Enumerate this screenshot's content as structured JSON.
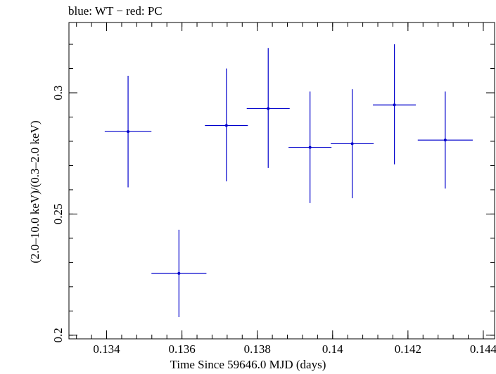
{
  "chart_data": {
    "type": "scatter",
    "title": "blue: WT − red: PC",
    "xlabel": "Time Since 59646.0 MJD (days)",
    "ylabel": "(2.0–10.0 keV)/(0.3–2.0 keV)",
    "xlim": [
      0.133,
      0.1443
    ],
    "ylim": [
      0.1985,
      0.329
    ],
    "xticks": [
      0.134,
      0.136,
      0.138,
      0.14,
      0.142,
      0.144
    ],
    "xtick_labels": [
      "0.134",
      "0.136",
      "0.138",
      "0.14",
      "0.142",
      "0.144"
    ],
    "yticks": [
      0.2,
      0.25,
      0.3
    ],
    "ytick_labels": [
      "0.2",
      "0.25",
      "0.3"
    ],
    "grid": false,
    "series": [
      {
        "color": "#0000cc",
        "points": [
          {
            "x": 0.13457,
            "y": 0.284,
            "xerr": 0.00062,
            "yerr_low": 0.023,
            "yerr_high": 0.023
          },
          {
            "x": 0.13592,
            "y": 0.2255,
            "xerr": 0.00073,
            "yerr_low": 0.018,
            "yerr_high": 0.018
          },
          {
            "x": 0.13718,
            "y": 0.2865,
            "xerr": 0.00057,
            "yerr_low": 0.023,
            "yerr_high": 0.0235
          },
          {
            "x": 0.13829,
            "y": 0.2935,
            "xerr": 0.00057,
            "yerr_low": 0.0245,
            "yerr_high": 0.025
          },
          {
            "x": 0.1394,
            "y": 0.2775,
            "xerr": 0.00057,
            "yerr_low": 0.023,
            "yerr_high": 0.023
          },
          {
            "x": 0.14052,
            "y": 0.279,
            "xerr": 0.00057,
            "yerr_low": 0.0225,
            "yerr_high": 0.0225
          },
          {
            "x": 0.14164,
            "y": 0.295,
            "xerr": 0.00057,
            "yerr_low": 0.0245,
            "yerr_high": 0.025
          },
          {
            "x": 0.14299,
            "y": 0.2805,
            "xerr": 0.00073,
            "yerr_low": 0.02,
            "yerr_high": 0.02
          }
        ]
      }
    ]
  }
}
